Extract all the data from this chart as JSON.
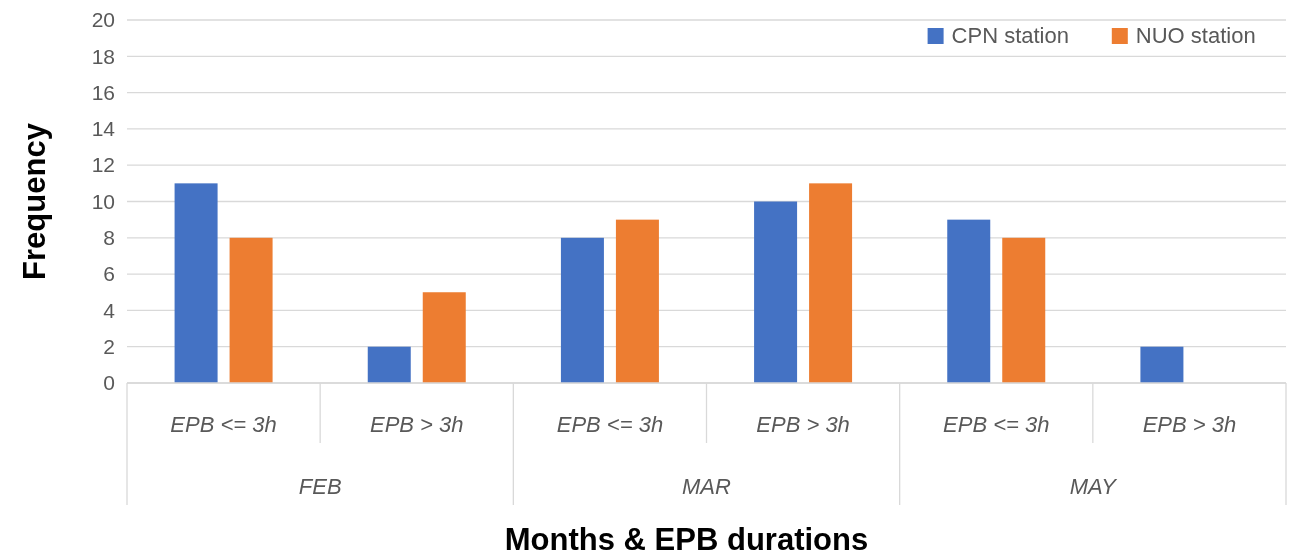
{
  "chart_data": {
    "type": "bar",
    "xlabel": "Months & EPB durations",
    "ylabel": "Frequency",
    "categories": [
      "EPB <= 3h",
      "EPB > 3h",
      "EPB <= 3h",
      "EPB > 3h",
      "EPB <= 3h",
      "EPB > 3h"
    ],
    "annotations": [
      "FEB",
      "MAR",
      "MAY"
    ],
    "series": [
      {
        "name": "CPN station",
        "color": "#4472c4",
        "values": [
          11,
          2,
          8,
          10,
          9,
          2
        ]
      },
      {
        "name": "NUO station",
        "color": "#ed7d31",
        "values": [
          8,
          5,
          9,
          11,
          8,
          0
        ]
      }
    ],
    "ylim": [
      0,
      20
    ],
    "yticks": [
      0,
      2,
      4,
      6,
      8,
      10,
      12,
      14,
      16,
      18,
      20
    ],
    "grid": "y",
    "legend": "top right"
  }
}
